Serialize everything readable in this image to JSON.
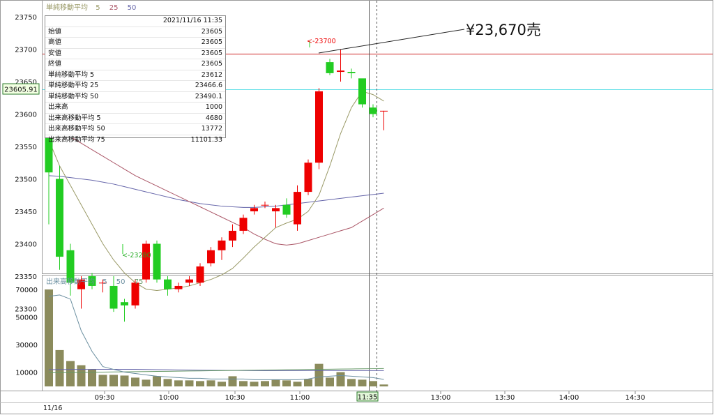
{
  "price_panel": {
    "indicator_title": "単純移動平均",
    "indicator_periods": [
      "5",
      "25",
      "50"
    ],
    "y_ticks": [
      "23750",
      "23700",
      "23650",
      "23600",
      "23550",
      "23500",
      "23450",
      "23400",
      "23350",
      "23300"
    ],
    "current_price_label": "23605.91",
    "high_marker": "<-23700",
    "low_marker": "<-23280",
    "annotation": "¥23,670売"
  },
  "tooltip": {
    "timestamp": "2021/11/16 11:35",
    "rows": [
      {
        "label": "始値",
        "value": "23605"
      },
      {
        "label": "高値",
        "value": "23605"
      },
      {
        "label": "安値",
        "value": "23605"
      },
      {
        "label": "終値",
        "value": "23605"
      },
      {
        "label": "単純移動平均 5",
        "value": "23612"
      },
      {
        "label": "単純移動平均 25",
        "value": "23466.6"
      },
      {
        "label": "単純移動平均 50",
        "value": "23490.1"
      },
      {
        "label": "出来高",
        "value": "1000"
      },
      {
        "label": "出来高移動平均 5",
        "value": "4680"
      },
      {
        "label": "出来高移動平均 50",
        "value": "13772"
      },
      {
        "label": "出来高移動平均 75",
        "value": "11101.33"
      }
    ]
  },
  "volume_panel": {
    "indicator_title": "出来高移動平均",
    "indicator_periods": [
      "5",
      "50",
      "75"
    ],
    "y_ticks": [
      "70000",
      "50000",
      "30000",
      "10000"
    ]
  },
  "time_axis": {
    "date_label": "11/16",
    "ticks": [
      "09:30",
      "10:00",
      "10:30",
      "11:00",
      "13:00",
      "13:30",
      "14:00",
      "14:30"
    ],
    "cursor_label": "11:35"
  },
  "colors": {
    "up": "#ee0000",
    "down": "#22cc22",
    "ma5": "#999966",
    "ma25": "#aa5566",
    "ma50": "#6666aa",
    "hline_red": "#cc2222",
    "hline_cyan": "#66e0e8",
    "volume_bar": "#8b8b5c",
    "vma5": "#6b8fa0",
    "vma50": "#669966",
    "vma75": "#6666aa"
  },
  "chart_data": [
    {
      "type": "candlestick",
      "ylim": [
        23250,
        23770
      ],
      "candles": [
        {
          "o": 23580,
          "h": 23640,
          "l": 23430,
          "c": 23510
        },
        {
          "o": 23500,
          "h": 23520,
          "l": 23360,
          "c": 23380
        },
        {
          "o": 23390,
          "h": 23400,
          "l": 23320,
          "c": 23340
        },
        {
          "o": 23330,
          "h": 23350,
          "l": 23300,
          "c": 23345
        },
        {
          "o": 23350,
          "h": 23355,
          "l": 23330,
          "c": 23335
        },
        {
          "o": 23340,
          "h": 23345,
          "l": 23325,
          "c": 23340
        },
        {
          "o": 23335,
          "h": 23350,
          "l": 23295,
          "c": 23300
        },
        {
          "o": 23310,
          "h": 23315,
          "l": 23280,
          "c": 23305
        },
        {
          "o": 23305,
          "h": 23345,
          "l": 23300,
          "c": 23340
        },
        {
          "o": 23345,
          "h": 23405,
          "l": 23340,
          "c": 23400
        },
        {
          "o": 23400,
          "h": 23405,
          "l": 23340,
          "c": 23345
        },
        {
          "o": 23345,
          "h": 23350,
          "l": 23320,
          "c": 23330
        },
        {
          "o": 23330,
          "h": 23340,
          "l": 23325,
          "c": 23335
        },
        {
          "o": 23340,
          "h": 23350,
          "l": 23335,
          "c": 23345
        },
        {
          "o": 23340,
          "h": 23370,
          "l": 23335,
          "c": 23365
        },
        {
          "o": 23370,
          "h": 23395,
          "l": 23365,
          "c": 23390
        },
        {
          "o": 23390,
          "h": 23410,
          "l": 23375,
          "c": 23405
        },
        {
          "o": 23405,
          "h": 23430,
          "l": 23395,
          "c": 23420
        },
        {
          "o": 23420,
          "h": 23445,
          "l": 23415,
          "c": 23440
        },
        {
          "o": 23450,
          "h": 23460,
          "l": 23445,
          "c": 23455
        },
        {
          "o": 23460,
          "h": 23465,
          "l": 23455,
          "c": 23460
        },
        {
          "o": 23450,
          "h": 23460,
          "l": 23425,
          "c": 23455
        },
        {
          "o": 23460,
          "h": 23470,
          "l": 23440,
          "c": 23445
        },
        {
          "o": 23430,
          "h": 23490,
          "l": 23420,
          "c": 23480
        },
        {
          "o": 23480,
          "h": 23530,
          "l": 23475,
          "c": 23525
        },
        {
          "o": 23525,
          "h": 23640,
          "l": 23515,
          "c": 23635
        },
        {
          "o": 23680,
          "h": 23685,
          "l": 23660,
          "c": 23663
        },
        {
          "o": 23665,
          "h": 23700,
          "l": 23650,
          "c": 23667
        },
        {
          "o": 23665,
          "h": 23670,
          "l": 23655,
          "c": 23663
        },
        {
          "o": 23655,
          "h": 23650,
          "l": 23610,
          "c": 23615
        },
        {
          "o": 23610,
          "h": 23615,
          "l": 23595,
          "c": 23600
        },
        {
          "o": 23605,
          "h": 23605,
          "l": 23575,
          "c": 23605
        }
      ],
      "ma5": [
        23560,
        23520,
        23490,
        23460,
        23430,
        23400,
        23375,
        23355,
        23340,
        23330,
        23328,
        23330,
        23332,
        23335,
        23340,
        23345,
        23352,
        23362,
        23378,
        23395,
        23410,
        23425,
        23432,
        23438,
        23450,
        23475,
        23520,
        23570,
        23610,
        23635,
        23630,
        23620
      ],
      "ma25": [
        23585,
        23575,
        23565,
        23555,
        23545,
        23535,
        23525,
        23515,
        23505,
        23497,
        23489,
        23481,
        23473,
        23465,
        23457,
        23449,
        23441,
        23433,
        23425,
        23415,
        23407,
        23400,
        23398,
        23400,
        23405,
        23410,
        23415,
        23420,
        23425,
        23435,
        23445,
        23455
      ],
      "ma50": [
        23505,
        23504,
        23502,
        23500,
        23498,
        23495,
        23492,
        23488,
        23484,
        23480,
        23476,
        23472,
        23468,
        23465,
        23462,
        23460,
        23458,
        23457,
        23456,
        23456,
        23457,
        23458,
        23460,
        23462,
        23464,
        23466,
        23468,
        23470,
        23472,
        23474,
        23476,
        23478
      ]
    },
    {
      "type": "bar",
      "ylim": [
        0,
        75000
      ],
      "values": [
        70000,
        26000,
        18000,
        15000,
        12000,
        8000,
        8000,
        7500,
        6000,
        4500,
        7000,
        5000,
        4000,
        4000,
        3500,
        4000,
        3000,
        7000,
        3500,
        3000,
        3500,
        4500,
        4000,
        3000,
        5000,
        16000,
        6000,
        10000,
        5000,
        4500,
        3500,
        1000
      ],
      "vma5": [
        65000,
        66000,
        63000,
        40000,
        25000,
        14000,
        12000,
        10000,
        9000,
        8000,
        7000,
        6500,
        6000,
        5500,
        5500,
        5000,
        5000,
        5000,
        5000,
        4500,
        4500,
        4500,
        4500,
        4500,
        5000,
        6500,
        7000,
        7500,
        7000,
        6500,
        6000,
        4680
      ],
      "vma50": [
        9500,
        9600,
        9700,
        9800,
        9900,
        10000,
        10100,
        10200,
        10300,
        10400,
        10500,
        10600,
        10700,
        10800,
        10900,
        11000,
        11100,
        11200,
        11300,
        11400,
        11500,
        11600,
        11700,
        11800,
        11900,
        12000,
        12100,
        12200,
        12300,
        12400,
        12500,
        12600
      ],
      "vma75": [
        11800,
        11850,
        11900,
        11950,
        12000,
        12000,
        12000,
        12000,
        12000,
        11900,
        11800,
        11700,
        11600,
        11500,
        11400,
        11300,
        11250,
        11200,
        11150,
        11100,
        11100,
        11100,
        11100,
        11100,
        11100,
        11100,
        11100,
        11100,
        11100,
        11100,
        11100,
        11101
      ]
    }
  ]
}
